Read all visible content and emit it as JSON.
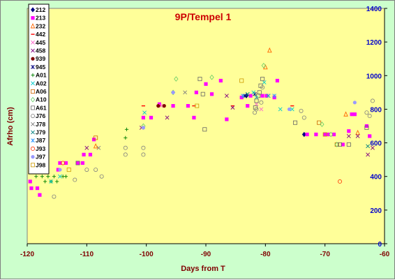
{
  "chart_data": {
    "type": "scatter",
    "title": "9P/Tempel 1",
    "xlabel": "Days from T",
    "ylabel": "Afrho (cm)",
    "xlim": [
      -120,
      -60
    ],
    "ylim": [
      0,
      1400
    ],
    "x_ticks": [
      "-120",
      "-110",
      "-100",
      "-90",
      "-80",
      "-70",
      "-60"
    ],
    "y_ticks": [
      "0",
      "200",
      "400",
      "600",
      "800",
      "1000",
      "1200",
      "1400"
    ],
    "grid": false,
    "legend_position": "left",
    "colors": {
      "plot_background": "#ffff99",
      "chart_background": "#ccffcc",
      "title": "#cc0000",
      "y_axis": "#0000cc"
    },
    "series": [
      {
        "name": "212",
        "color": "#000080",
        "marker": "diamond",
        "points": [
          [
            -83.2,
            880
          ],
          [
            -73.5,
            650
          ]
        ]
      },
      {
        "name": "213",
        "color": "#ff00ff",
        "marker": "square",
        "points": [
          [
            -119.5,
            370
          ],
          [
            -119.3,
            330
          ],
          [
            -118.3,
            330
          ],
          [
            -117.9,
            290
          ],
          [
            -114.8,
            440
          ],
          [
            -114.5,
            480
          ],
          [
            -113.5,
            480
          ],
          [
            -111.5,
            480
          ],
          [
            -110.7,
            480
          ],
          [
            -110.5,
            530
          ],
          [
            -109.4,
            530
          ],
          [
            -108.8,
            620
          ],
          [
            -100.5,
            750
          ],
          [
            -99.2,
            750
          ],
          [
            -97.8,
            830
          ],
          [
            -95.5,
            820
          ],
          [
            -93.0,
            820
          ],
          [
            -92.0,
            750
          ],
          [
            -91.6,
            900
          ],
          [
            -90.0,
            950
          ],
          [
            -89.0,
            890
          ],
          [
            -87.5,
            970
          ],
          [
            -86.5,
            740
          ],
          [
            -84.0,
            870
          ],
          [
            -83.0,
            820
          ],
          [
            -82.5,
            880
          ],
          [
            -80.5,
            880
          ],
          [
            -79.8,
            880
          ],
          [
            -78.5,
            870
          ],
          [
            -78.0,
            970
          ],
          [
            -73.0,
            650
          ],
          [
            -71.5,
            650
          ],
          [
            -70.0,
            650
          ],
          [
            -69.5,
            650
          ],
          [
            -68.5,
            650
          ],
          [
            -67.0,
            590
          ],
          [
            -66.0,
            670
          ],
          [
            -65.5,
            770
          ],
          [
            -65.0,
            770
          ],
          [
            -63.0,
            700
          ],
          [
            -62.5,
            640
          ]
        ]
      },
      {
        "name": "232",
        "color": "#ff6600",
        "marker": "triangle",
        "points": [
          [
            -108.5,
            580
          ],
          [
            -80.0,
            1050
          ],
          [
            -79.3,
            1150
          ],
          [
            -66.5,
            770
          ],
          [
            -64.5,
            660
          ]
        ]
      },
      {
        "name": "442",
        "color": "#ff0000",
        "marker": "dash",
        "points": [
          [
            -100.5,
            820
          ],
          [
            -97.8,
            820
          ],
          [
            -92.0,
            820
          ],
          [
            -85.5,
            820
          ],
          [
            -75.5,
            820
          ]
        ]
      },
      {
        "name": "445",
        "color": "#ff66cc",
        "marker": "x",
        "points": [
          [
            -97.5,
            820
          ],
          [
            -81.5,
            830
          ],
          [
            -80.7,
            800
          ]
        ]
      },
      {
        "name": "458",
        "color": "#800080",
        "marker": "x",
        "points": [
          [
            -110.0,
            570
          ],
          [
            -100.8,
            690
          ],
          [
            -96.5,
            750
          ],
          [
            -86.5,
            880
          ],
          [
            -85.5,
            810
          ],
          [
            -79.5,
            880
          ],
          [
            -66.0,
            640
          ],
          [
            -64.5,
            640
          ],
          [
            -62.8,
            530
          ],
          [
            -62.0,
            570
          ]
        ]
      },
      {
        "name": "939",
        "color": "#800000",
        "marker": "circle",
        "points": [
          [
            -98.0,
            820
          ],
          [
            -97.0,
            820
          ]
        ]
      },
      {
        "name": "945",
        "color": "#000080",
        "marker": "star",
        "points": [
          [
            -83.5,
            880
          ],
          [
            -81.8,
            890
          ]
        ]
      },
      {
        "name": "A01",
        "color": "#008000",
        "marker": "plus",
        "points": [
          [
            -118.5,
            400
          ],
          [
            -117.5,
            400
          ],
          [
            -116.5,
            400
          ],
          [
            -115.5,
            400
          ],
          [
            -114.0,
            400
          ],
          [
            -113.5,
            400
          ],
          [
            -117.0,
            370
          ],
          [
            -116.0,
            370
          ],
          [
            -115.0,
            370
          ],
          [
            -103.3,
            680
          ],
          [
            -103.5,
            630
          ]
        ]
      },
      {
        "name": "A02",
        "color": "#00cccc",
        "marker": "x",
        "points": [
          [
            -116.0,
            370
          ],
          [
            -114.5,
            400
          ],
          [
            -100.3,
            780
          ],
          [
            -82.0,
            900
          ],
          [
            -81.5,
            870
          ],
          [
            -80.2,
            960
          ],
          [
            -79.5,
            880
          ],
          [
            -77.5,
            800
          ],
          [
            -75.5,
            800
          ]
        ]
      },
      {
        "name": "A06",
        "color": "#cc6600",
        "marker": "square-open",
        "points": [
          [
            -108.5,
            630
          ],
          [
            -71.0,
            720
          ],
          [
            -68.0,
            590
          ]
        ]
      },
      {
        "name": "A10",
        "color": "#66cc66",
        "marker": "diamond-open",
        "points": [
          [
            -100.5,
            700
          ],
          [
            -95.0,
            980
          ],
          [
            -95.5,
            900
          ],
          [
            -89.0,
            990
          ],
          [
            -80.3,
            1060
          ],
          [
            -70.5,
            710
          ],
          [
            -69.0,
            650
          ],
          [
            -68.0,
            590
          ]
        ]
      },
      {
        "name": "A61",
        "color": "#666666",
        "marker": "square-open",
        "points": [
          [
            -111.5,
            480
          ],
          [
            -91.0,
            980
          ],
          [
            -90.5,
            890
          ],
          [
            -90.2,
            680
          ],
          [
            -81.7,
            810
          ],
          [
            -81.5,
            850
          ],
          [
            -81.2,
            880
          ],
          [
            -81.0,
            900
          ],
          [
            -80.8,
            940
          ],
          [
            -80.5,
            980
          ],
          [
            -75.0,
            720
          ],
          [
            -67.5,
            590
          ],
          [
            -66.0,
            590
          ],
          [
            -63.0,
            690
          ]
        ]
      },
      {
        "name": "J76",
        "color": "#808080",
        "marker": "circle-open",
        "points": [
          [
            -115.5,
            280
          ],
          [
            -112.0,
            380
          ],
          [
            -110.0,
            440
          ],
          [
            -108.5,
            440
          ],
          [
            -107.5,
            400
          ],
          [
            -103.5,
            570
          ],
          [
            -103.5,
            530
          ],
          [
            -100.5,
            570
          ],
          [
            -100.5,
            530
          ],
          [
            -81.8,
            780
          ],
          [
            -81.5,
            800
          ],
          [
            -80.7,
            840
          ],
          [
            -80.5,
            930
          ],
          [
            -74.0,
            790
          ],
          [
            -73.5,
            750
          ],
          [
            -63.0,
            780
          ],
          [
            -62.5,
            760
          ],
          [
            -62.0,
            850
          ]
        ]
      },
      {
        "name": "J78",
        "color": "#808080",
        "marker": "x",
        "points": [
          [
            -108.0,
            570
          ],
          [
            -93.5,
            900
          ]
        ]
      },
      {
        "name": "J79",
        "color": "#008080",
        "marker": "x",
        "points": [
          [
            -83.0,
            890
          ],
          [
            -62.8,
            580
          ]
        ]
      },
      {
        "name": "J87",
        "color": "#3399ff",
        "marker": "star",
        "points": [
          [
            -83.8,
            880
          ],
          [
            -78.5,
            880
          ]
        ]
      },
      {
        "name": "J93",
        "color": "#ff3300",
        "marker": "circle-open",
        "points": [
          [
            -114.0,
            480
          ],
          [
            -67.5,
            370
          ]
        ]
      },
      {
        "name": "J97",
        "color": "#9999ff",
        "marker": "circle",
        "points": [
          [
            -114.5,
            440
          ],
          [
            -100.5,
            690
          ],
          [
            -95.5,
            900
          ],
          [
            -76.0,
            800
          ],
          [
            -65.0,
            840
          ]
        ]
      },
      {
        "name": "J98",
        "color": "#cc9900",
        "marker": "square-open",
        "points": [
          [
            -113.0,
            440
          ],
          [
            -91.5,
            820
          ],
          [
            -84.0,
            970
          ],
          [
            -70.0,
            650
          ]
        ]
      }
    ]
  }
}
